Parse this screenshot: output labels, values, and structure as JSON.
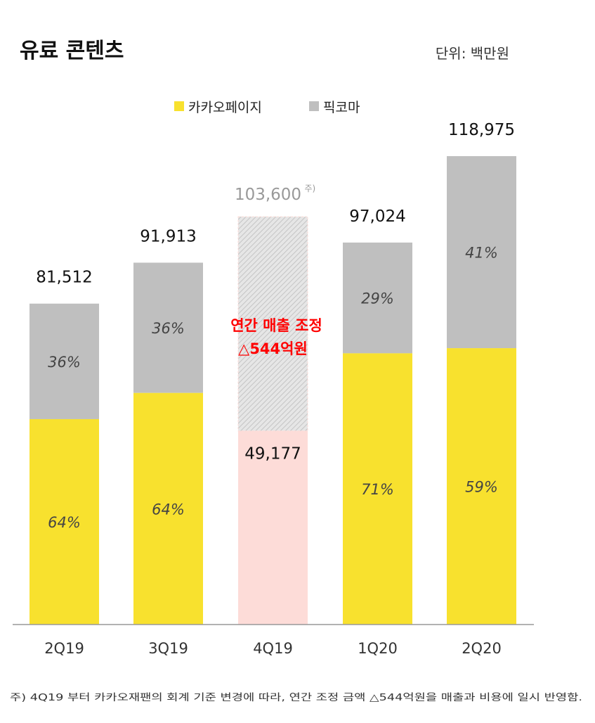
{
  "title": "유료 콘텐츠",
  "unit": "단위: 백만원",
  "footnote": "주) 4Q19 부터 카카오재팬의 회계 기준 변경에 따라, 연간 조정 금액 △544억원을 매출과 비용에 일시 반영함.",
  "colors": {
    "kakaopage": "#F8E12E",
    "piccoma": "#BFBFBF",
    "adjusted": "#FDDCD8",
    "annotation": "#FF0000"
  },
  "chart_data": {
    "type": "bar",
    "stacked": true,
    "categories": [
      "2Q19",
      "3Q19",
      "4Q19",
      "1Q20",
      "2Q20"
    ],
    "legend": [
      "카카오페이지",
      "픽코마"
    ],
    "legend_position": "top-center",
    "totals": [
      81512,
      91913,
      103600,
      97024,
      118975
    ],
    "total_labels": [
      "81,512",
      "91,913",
      "103,600",
      "97,024",
      "118,975"
    ],
    "total_label_note": [
      "",
      "",
      "주)",
      "",
      ""
    ],
    "series": [
      {
        "name": "카카오페이지",
        "share_percent": [
          64,
          64,
          null,
          71,
          59
        ],
        "labels": [
          "64%",
          "64%",
          "",
          "71%",
          "59%"
        ]
      },
      {
        "name": "픽코마",
        "share_percent": [
          36,
          36,
          null,
          29,
          41
        ],
        "labels": [
          "36%",
          "36%",
          "",
          "29%",
          "41%"
        ]
      }
    ],
    "adjusted_bar": {
      "category": "4Q19",
      "reported_value": 49177,
      "reported_label": "49,177",
      "pre_adjustment_total": 103600,
      "annotation_line1": "연간 매출 조정",
      "annotation_line2": "△544억원"
    },
    "ylim": [
      0,
      118975
    ],
    "grid": false
  }
}
